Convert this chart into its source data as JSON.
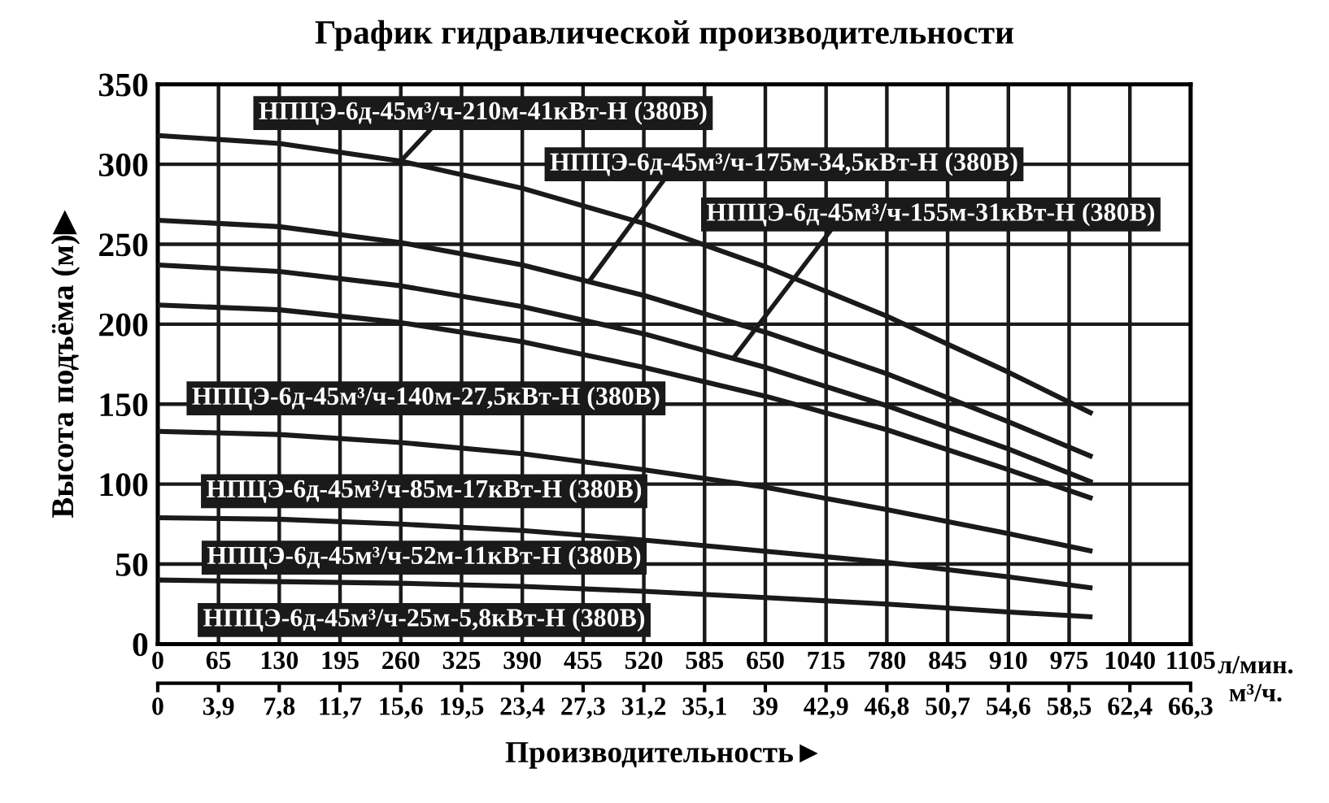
{
  "chart_data": {
    "type": "line",
    "title": "График гидравлической производительности",
    "xlabel": "л/мин.",
    "x2label": "м³/ч.",
    "ylabel": "Высота подъёма (м)▶",
    "annotations": [
      "Производительность►"
    ],
    "x": [
      0,
      130,
      260,
      390,
      520,
      650,
      780,
      910,
      1000
    ],
    "series": [
      {
        "name": "НПЦЭ-6д-45м³/ч-210м-41кВт-Н (380В)",
        "color": "#1a1a1a",
        "values": [
          318,
          313,
          302,
          285,
          263,
          236,
          205,
          170,
          144
        ]
      },
      {
        "name": "НПЦЭ-6д-45м³/ч-175м-34,5кВт-Н (380В)",
        "color": "#1a1a1a",
        "values": [
          265,
          261,
          251,
          237,
          218,
          195,
          169,
          139,
          117
        ]
      },
      {
        "name": "НПЦЭ-6д-45м³/ч-155м-31кВт-Н (380В)",
        "color": "#1a1a1a",
        "values": [
          237,
          233,
          224,
          211,
          194,
          173,
          149,
          122,
          101
        ]
      },
      {
        "name": "НПЦЭ-6д-45м³/ч-140м-27,5кВт-Н (380В)",
        "color": "#1a1a1a",
        "values": [
          212,
          209,
          201,
          189,
          173,
          155,
          134,
          109,
          91
        ]
      },
      {
        "name": "НПЦЭ-6д-45м³/ч-85м-17кВт-Н (380В)",
        "color": "#1a1a1a",
        "values": [
          133,
          131,
          126,
          119,
          109,
          98,
          84,
          69,
          58
        ]
      },
      {
        "name": "НПЦЭ-6д-45м³/ч-52м-11кВт-Н (380В)",
        "color": "#1a1a1a",
        "values": [
          79,
          78,
          75,
          71,
          65,
          58,
          51,
          42,
          35
        ]
      },
      {
        "name": "НПЦЭ-6д-45м³/ч-25м-5,8кВт-Н (380В)",
        "color": "#1a1a1a",
        "values": [
          40,
          39,
          38,
          36,
          33,
          29,
          25,
          20,
          17
        ]
      }
    ],
    "xlim": [
      0,
      1105
    ],
    "xticks": [
      0,
      65,
      130,
      195,
      260,
      325,
      390,
      455,
      520,
      585,
      650,
      715,
      780,
      845,
      910,
      975,
      1040,
      1105
    ],
    "x2lim": [
      0,
      66.3
    ],
    "x2ticks": [
      0,
      {
        "value": 3.9,
        "label": "3,9"
      },
      {
        "value": 7.8,
        "label": "7,8"
      },
      {
        "value": 11.7,
        "label": "11,7"
      },
      {
        "value": 15.6,
        "label": "15,6"
      },
      {
        "value": 19.5,
        "label": "19,5"
      },
      {
        "value": 23.4,
        "label": "23,4"
      },
      {
        "value": 27.3,
        "label": "27,3"
      },
      {
        "value": 31.2,
        "label": "31,2"
      },
      {
        "value": 35.1,
        "label": "35,1"
      },
      39,
      {
        "value": 42.9,
        "label": "42,9"
      },
      {
        "value": 46.8,
        "label": "46,8"
      },
      {
        "value": 50.7,
        "label": "50,7"
      },
      {
        "value": 54.6,
        "label": "54,6"
      },
      {
        "value": 58.5,
        "label": "58,5"
      },
      {
        "value": 62.4,
        "label": "62,4"
      },
      {
        "value": 66.3,
        "label": "66,3"
      }
    ],
    "ylim": [
      0,
      350
    ],
    "yticks": [
      0,
      50,
      100,
      150,
      200,
      250,
      300,
      350
    ],
    "grid": true,
    "legend": false,
    "marker": "none",
    "line_style": "solid"
  }
}
